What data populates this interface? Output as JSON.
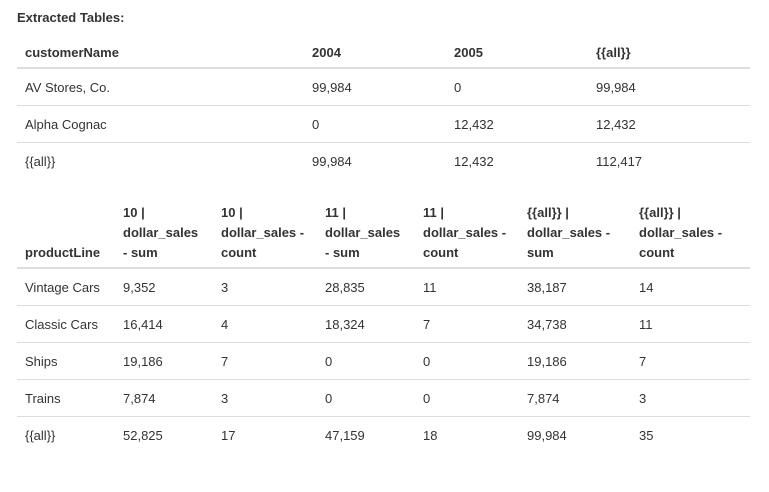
{
  "title": "Extracted Tables:",
  "table1": {
    "headers": [
      "customerName",
      "2004",
      "2005",
      "{{all}}"
    ],
    "rows": [
      [
        "AV Stores, Co.",
        "99,984",
        "0",
        "99,984"
      ],
      [
        "Alpha Cognac",
        "0",
        "12,432",
        "12,432"
      ],
      [
        "{{all}}",
        "99,984",
        "12,432",
        "112,417"
      ]
    ]
  },
  "table2": {
    "headers": [
      "productLine",
      "10 | dollar_sales - sum",
      "10 | dollar_sales - count",
      "11 | dollar_sales - sum",
      "11 | dollar_sales - count",
      "{{all}} | dollar_sales - sum",
      "{{all}} | dollar_sales - count"
    ],
    "rows": [
      [
        "Vintage Cars",
        "9,352",
        "3",
        "28,835",
        "11",
        "38,187",
        "14"
      ],
      [
        "Classic Cars",
        "16,414",
        "4",
        "18,324",
        "7",
        "34,738",
        "11"
      ],
      [
        "Ships",
        "19,186",
        "7",
        "0",
        "0",
        "19,186",
        "7"
      ],
      [
        "Trains",
        "7,874",
        "3",
        "0",
        "0",
        "7,874",
        "3"
      ],
      [
        "{{all}}",
        "52,825",
        "17",
        "47,159",
        "18",
        "99,984",
        "35"
      ]
    ]
  }
}
